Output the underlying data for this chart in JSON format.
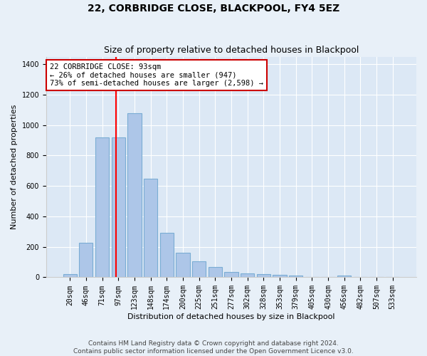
{
  "title": "22, CORBRIDGE CLOSE, BLACKPOOL, FY4 5EZ",
  "subtitle": "Size of property relative to detached houses in Blackpool",
  "xlabel": "Distribution of detached houses by size in Blackpool",
  "ylabel": "Number of detached properties",
  "categories": [
    "20sqm",
    "46sqm",
    "71sqm",
    "97sqm",
    "123sqm",
    "148sqm",
    "174sqm",
    "200sqm",
    "225sqm",
    "251sqm",
    "277sqm",
    "302sqm",
    "328sqm",
    "353sqm",
    "379sqm",
    "405sqm",
    "430sqm",
    "456sqm",
    "482sqm",
    "507sqm",
    "533sqm"
  ],
  "values": [
    20,
    225,
    920,
    920,
    1080,
    650,
    290,
    160,
    105,
    70,
    35,
    25,
    20,
    15,
    10,
    0,
    0,
    10,
    0,
    0,
    0
  ],
  "bar_color": "#adc6e8",
  "bar_edgecolor": "#7aadd4",
  "vline_color": "red",
  "vline_x_index": 2.85,
  "ylim": [
    0,
    1450
  ],
  "yticks": [
    0,
    200,
    400,
    600,
    800,
    1000,
    1200,
    1400
  ],
  "annotation_text": "22 CORBRIDGE CLOSE: 93sqm\n← 26% of detached houses are smaller (947)\n73% of semi-detached houses are larger (2,598) →",
  "annotation_box_edgecolor": "#cc0000",
  "footer_line1": "Contains HM Land Registry data © Crown copyright and database right 2024.",
  "footer_line2": "Contains public sector information licensed under the Open Government Licence v3.0.",
  "background_color": "#e8f0f8",
  "plot_bg_color": "#dce8f5",
  "grid_color": "#ffffff",
  "title_fontsize": 10,
  "subtitle_fontsize": 9,
  "axis_label_fontsize": 8,
  "tick_fontsize": 7,
  "annotation_fontsize": 7.5,
  "footer_fontsize": 6.5
}
